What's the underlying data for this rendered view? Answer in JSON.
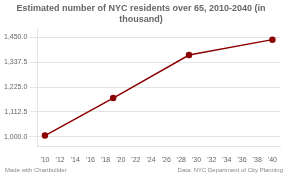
{
  "chart_data": {
    "type": "line",
    "title": "Estimated number of NYC residents over 65, 2010-2040 (in thousand)",
    "x": [
      2010,
      2019,
      2029,
      2040
    ],
    "values": [
      1005,
      1175,
      1370,
      1440
    ],
    "color": "#8b0000",
    "marker": "circle",
    "xlim": [
      2009.0,
      2041.0
    ],
    "xticks": [
      {
        "value": 2010,
        "label": "'10"
      },
      {
        "value": 2012,
        "label": "'12"
      },
      {
        "value": 2014,
        "label": "'14"
      },
      {
        "value": 2016,
        "label": "'16"
      },
      {
        "value": 2018,
        "label": "'18"
      },
      {
        "value": 2020,
        "label": "'20"
      },
      {
        "value": 2022,
        "label": "'22"
      },
      {
        "value": 2024,
        "label": "'24"
      },
      {
        "value": 2026,
        "label": "'26"
      },
      {
        "value": 2028,
        "label": "'28"
      },
      {
        "value": 2030,
        "label": "'30"
      },
      {
        "value": 2032,
        "label": "'32"
      },
      {
        "value": 2034,
        "label": "'34"
      },
      {
        "value": 2036,
        "label": "'36"
      },
      {
        "value": 2038,
        "label": "'38"
      },
      {
        "value": 2040,
        "label": "'40"
      }
    ],
    "ylim": [
      955,
      1490
    ],
    "yticks": [
      {
        "value": 1000.0,
        "label": "1,000.0"
      },
      {
        "value": 1112.5,
        "label": "1,112.5"
      },
      {
        "value": 1225.0,
        "label": "1,225.0"
      },
      {
        "value": 1337.5,
        "label": "1,337.5"
      },
      {
        "value": 1450.0,
        "label": "1,450.0"
      }
    ],
    "grid": "y",
    "annotations": [
      "Made with Chartbuilder",
      "Data: NYC Department of City Planning"
    ]
  }
}
